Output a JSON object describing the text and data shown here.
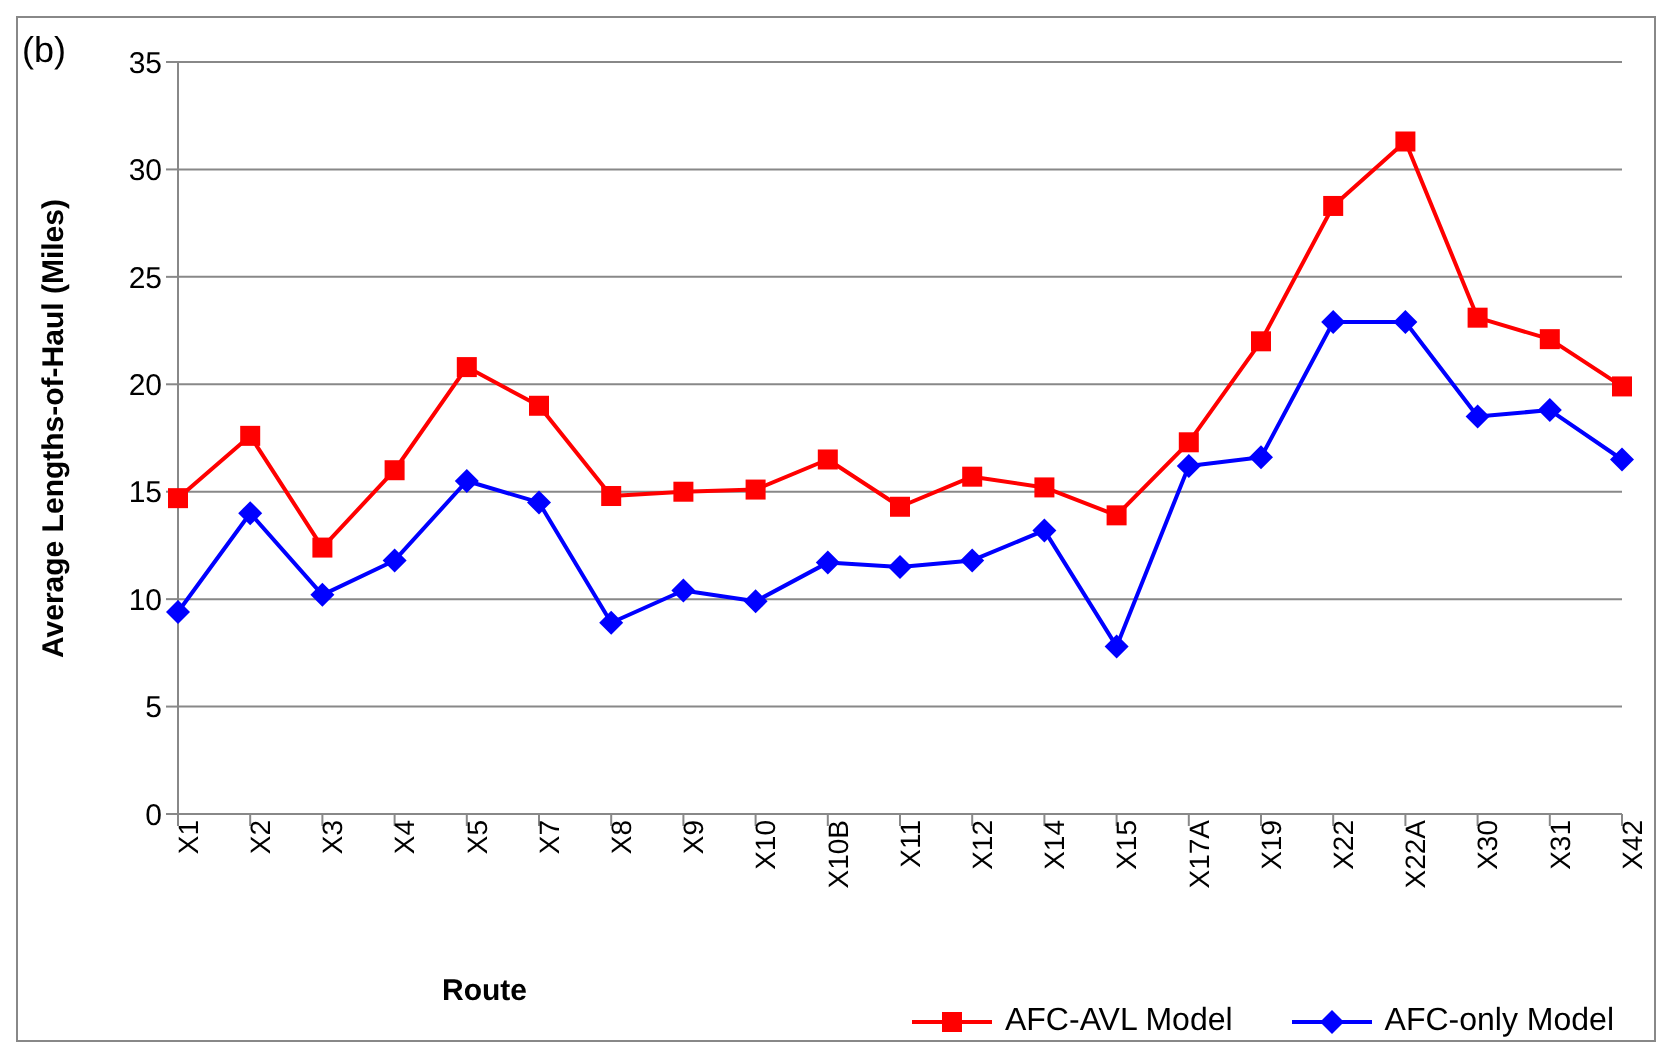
{
  "chart_data": {
    "type": "line",
    "xlabel": "Route",
    "ylabel": "Average Lengths-of-Haul  (Miles)",
    "annotations": [
      "(b)"
    ],
    "categories": [
      "X1",
      "X2",
      "X3",
      "X4",
      "X5",
      "X7",
      "X8",
      "X9",
      "X10",
      "X10B",
      "X11",
      "X12",
      "X14",
      "X15",
      "X17A",
      "X19",
      "X22",
      "X22A",
      "X30",
      "X31",
      "X42"
    ],
    "series": [
      {
        "name": "AFC-AVL Model",
        "color": "#ff0000",
        "marker": "square",
        "values": [
          14.7,
          17.6,
          12.4,
          16.0,
          20.8,
          19.0,
          14.8,
          15.0,
          15.1,
          16.5,
          14.3,
          15.7,
          15.2,
          13.9,
          17.3,
          22.0,
          28.3,
          31.3,
          23.1,
          22.1,
          19.9
        ]
      },
      {
        "name": "AFC-only Model",
        "color": "#0000ff",
        "marker": "diamond",
        "values": [
          9.4,
          14.0,
          10.2,
          11.8,
          15.5,
          14.5,
          8.9,
          10.4,
          9.9,
          11.7,
          11.5,
          11.8,
          13.2,
          7.8,
          16.2,
          16.6,
          22.9,
          22.9,
          18.5,
          18.8,
          16.5
        ]
      }
    ],
    "ylim": [
      0,
      35
    ],
    "yticks": [
      0,
      5,
      10,
      15,
      20,
      25,
      30,
      35
    ],
    "grid": "y",
    "legend": "bottom right",
    "line_style": "solid"
  }
}
